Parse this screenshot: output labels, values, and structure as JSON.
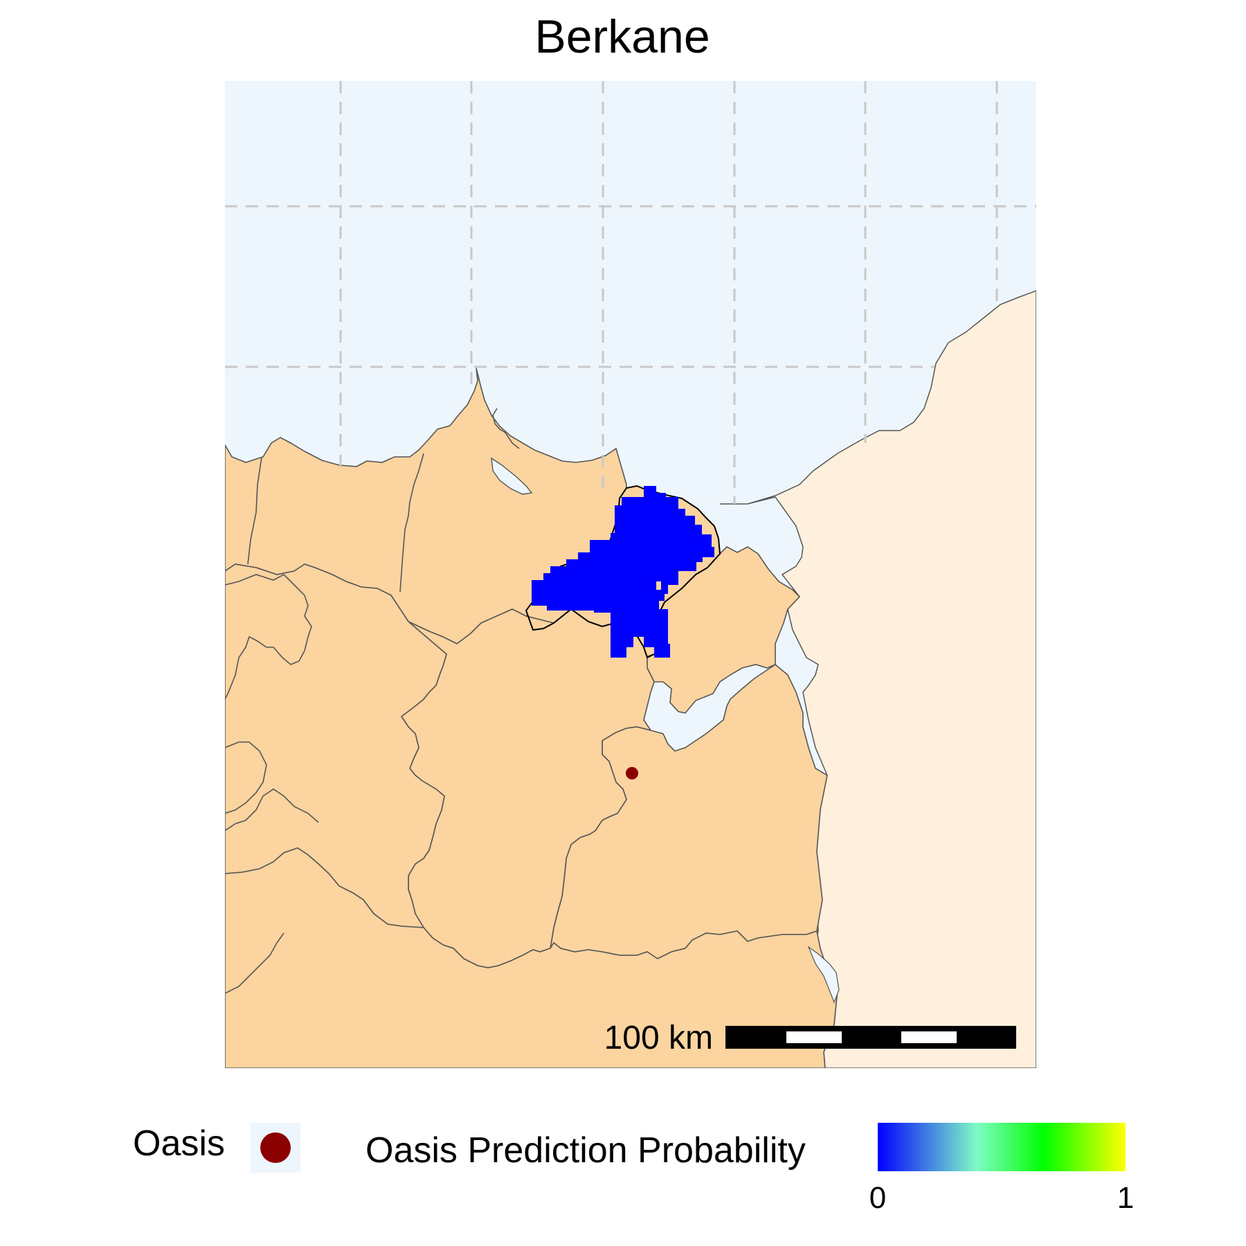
{
  "title": "Berkane",
  "scale_bar": {
    "label": "100 km"
  },
  "legend": {
    "oasis_label": "Oasis",
    "probability_title": "Oasis Prediction Probability",
    "colorbar": {
      "min_label": "0",
      "max_label": "1",
      "min": 0,
      "max": 1,
      "colors": [
        "#0000ff",
        "#7ffbc6",
        "#00ff00",
        "#ffff00"
      ]
    }
  },
  "colors": {
    "sea": "#eef6fd",
    "morocco_land": "#fbd4a0",
    "neighbor_land": "#fef0dc",
    "boundary": "#555555",
    "graticule": "#c8c8c8",
    "prediction": "#0000ff",
    "oasis_marker": "#8b0000"
  },
  "features": {
    "highlighted_province": "Berkane",
    "prediction_probability": 0,
    "oasis_points": 1
  }
}
